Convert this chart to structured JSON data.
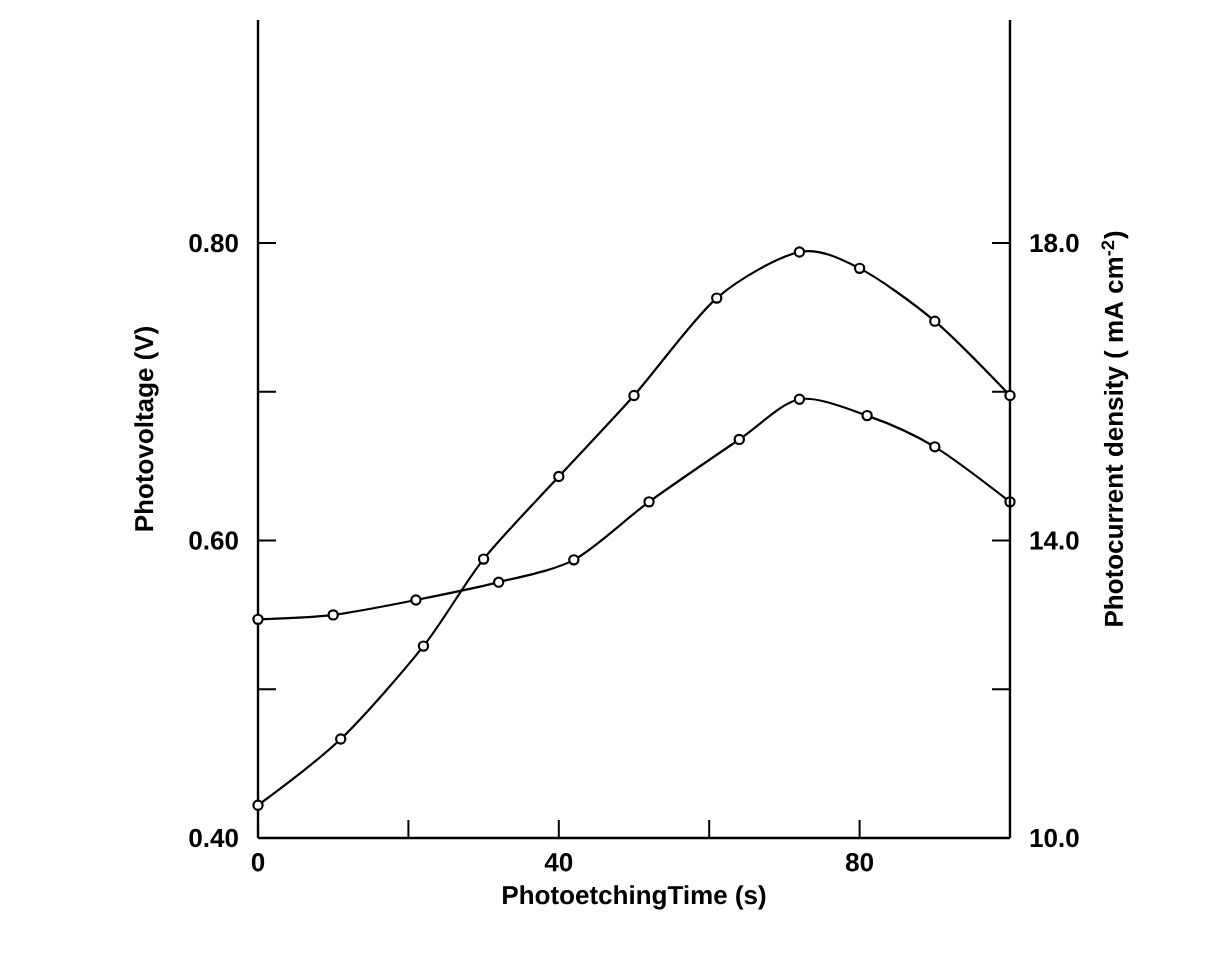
{
  "chart_data": {
    "type": "line",
    "xlabel": "PhotoetchingTime (s)",
    "ylabel": "Photovoltage (V)",
    "y2label": "Photocurrent density ( mA cm$^{-2}$)",
    "series": [
      {
        "color": "#000000",
        "x": [
          0,
          10,
          21,
          32,
          42,
          52,
          64,
          72,
          81,
          90,
          100
        ],
        "values": [
          0.547,
          0.55,
          0.56,
          0.572,
          0.587,
          0.626,
          0.668,
          0.695,
          0.684,
          0.663,
          0.626
        ]
      },
      {
        "color": "#000000",
        "axis": "y2",
        "x": [
          0,
          11,
          22,
          30,
          40,
          50,
          61,
          72,
          80,
          90,
          100
        ],
        "values": [
          10.44,
          11.33,
          12.58,
          13.75,
          14.86,
          15.95,
          17.26,
          17.88,
          17.66,
          16.95,
          15.95
        ]
      }
    ],
    "xlim": [
      0,
      100
    ],
    "xticks": [
      0,
      {
        "value": 20,
        "label": null
      },
      40,
      {
        "value": 60,
        "label": null
      },
      80
    ],
    "ylim": [
      0.4,
      0.95
    ],
    "yticks": [
      {
        "value": 0.4,
        "label": "0.40"
      },
      {
        "value": 0.5,
        "label": null
      },
      {
        "value": 0.6,
        "label": "0.60"
      },
      {
        "value": 0.7,
        "label": null
      },
      {
        "value": 0.8,
        "label": "0.80"
      }
    ],
    "y2lim": [
      10,
      21
    ],
    "y2ticks": [
      {
        "value": 10,
        "label": "10.0"
      },
      {
        "value": 12,
        "label": null
      },
      {
        "value": 14,
        "label": "14.0"
      },
      {
        "value": 16,
        "label": null
      },
      {
        "value": 18,
        "label": "18.0"
      }
    ],
    "marker": "circle",
    "line_style": "solid"
  }
}
